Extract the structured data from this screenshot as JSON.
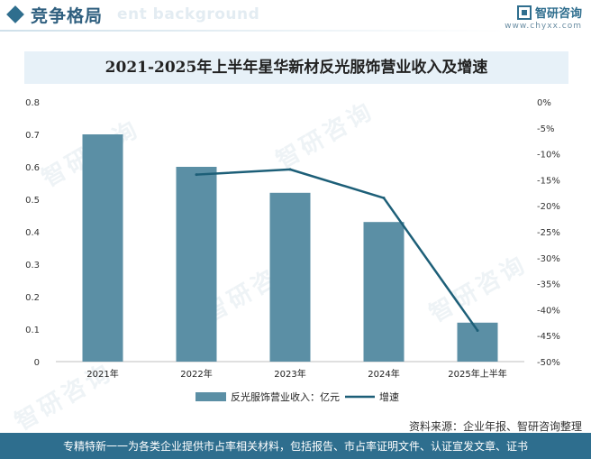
{
  "header": {
    "section_title": "竞争格局",
    "ghost_text": "ent background",
    "logo_name": "智研咨询",
    "logo_url": "www.chyxx.com"
  },
  "watermark": "智研咨询",
  "colors": {
    "bar": "#5b8fa5",
    "line": "#1d5f78",
    "title_bg": "#e7f1f8",
    "footer_bg": "#2e6e8e"
  },
  "chart_data": {
    "type": "bar",
    "title": "2021-2025年上半年星华新材反光服饰营业收入及增速",
    "categories": [
      "2021年",
      "2022年",
      "2023年",
      "2024年",
      "2025年上半年"
    ],
    "series": [
      {
        "name": "反光服饰营业收入：亿元",
        "type": "bar",
        "axis": "left",
        "values": [
          0.7,
          0.6,
          0.52,
          0.43,
          0.12
        ]
      },
      {
        "name": "增速",
        "type": "line",
        "axis": "right",
        "values": [
          null,
          -14.0,
          -13.0,
          -18.5,
          -44.0
        ]
      }
    ],
    "y_left": {
      "ylim": [
        0,
        0.8
      ],
      "ticks": [
        "0",
        "0.1",
        "0.2",
        "0.3",
        "0.4",
        "0.5",
        "0.6",
        "0.7",
        "0.8"
      ]
    },
    "y_right": {
      "ylim": [
        -50,
        0
      ],
      "ticks": [
        "0%",
        "-5%",
        "-10%",
        "-15%",
        "-20%",
        "-25%",
        "-30%",
        "-35%",
        "-40%",
        "-45%",
        "-50%"
      ]
    },
    "grid": false,
    "legend": "bottom"
  },
  "source": "资料来源：企业年报、智研咨询整理",
  "footer": "专精特新一一为各类企业提供市占率相关材料，包括报告、市占率证明文件、认证宣发文章、证书"
}
